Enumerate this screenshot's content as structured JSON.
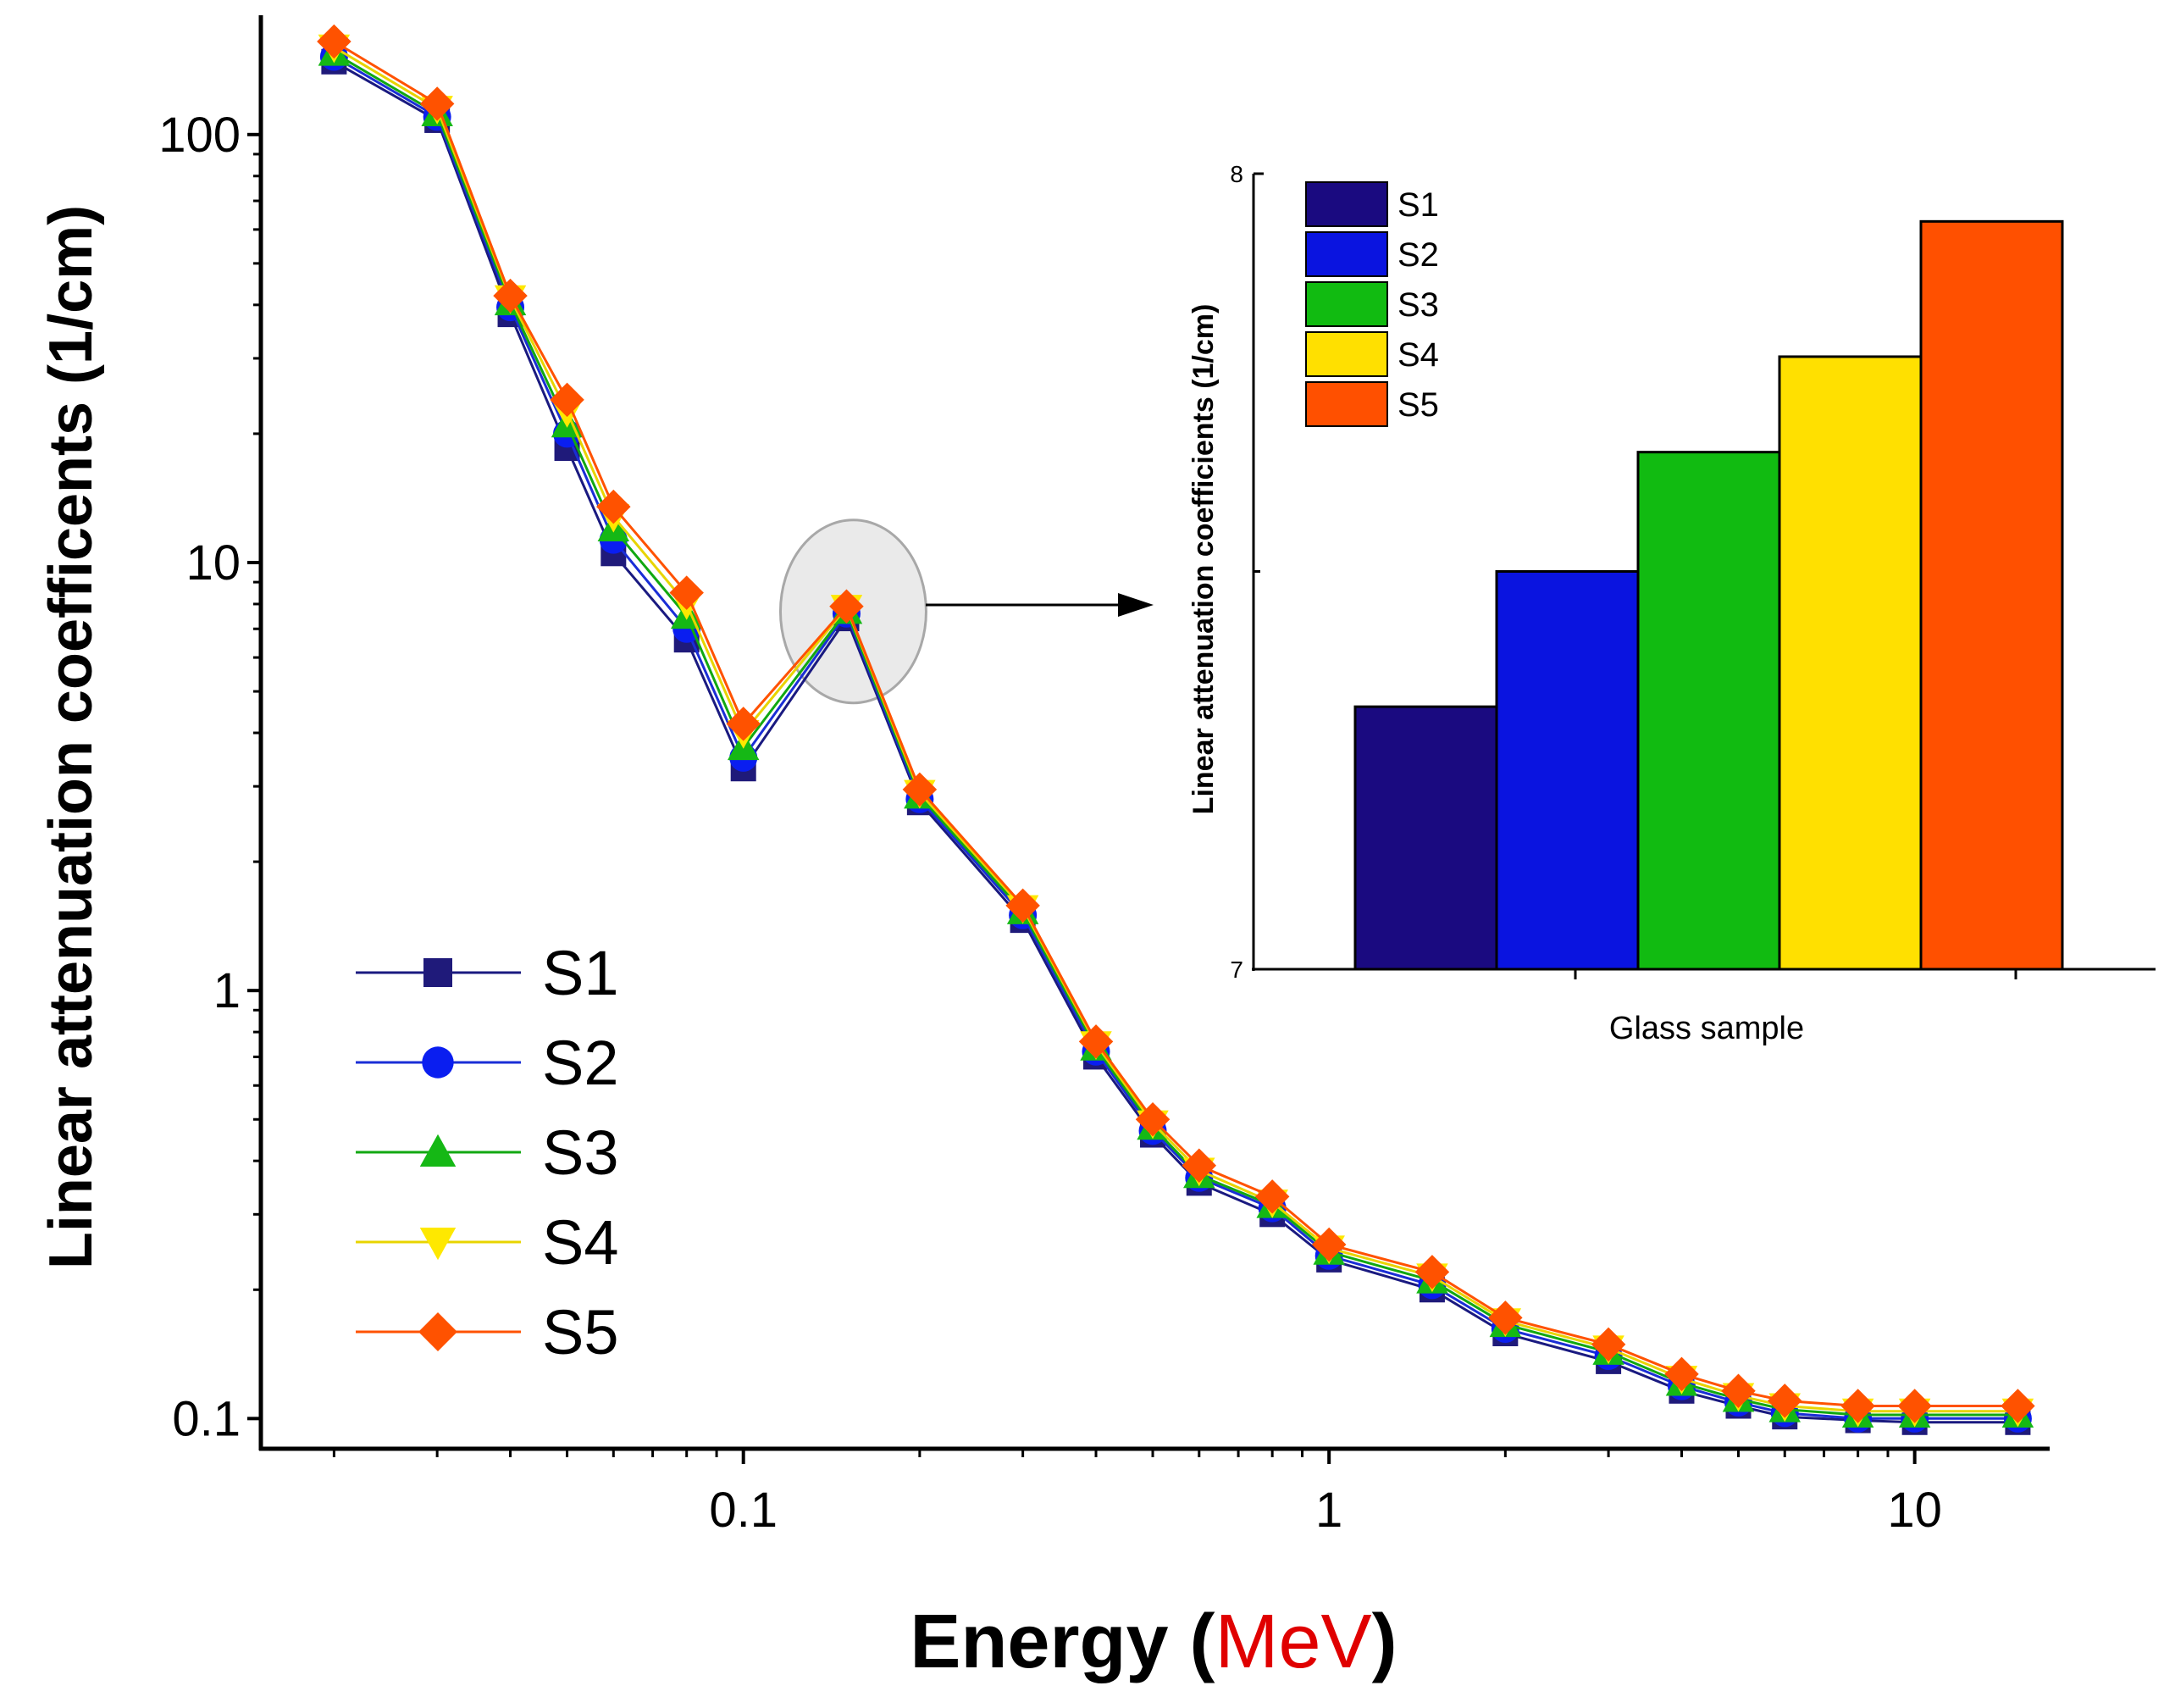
{
  "chart_data": [
    {
      "type": "line",
      "xscale": "log",
      "yscale": "log",
      "xlabel": "Energy",
      "xlabel_prefix": "Energy (",
      "xlabel_unit": "MeV",
      "xlabel_suffix": ")",
      "ylabel": "Linear attenuation coefficents (1/cm)",
      "xlim": [
        0.015,
        17
      ],
      "ylim": [
        0.085,
        190
      ],
      "x_ticks": [
        0.1,
        1,
        10
      ],
      "x_tick_labels": [
        "0.1",
        "1",
        "10"
      ],
      "y_ticks": [
        0.1,
        1,
        10,
        100
      ],
      "y_tick_labels": [
        "0.1",
        "1",
        "10",
        "100"
      ],
      "x": [
        0.02,
        0.03,
        0.04,
        0.05,
        0.06,
        0.08,
        0.1,
        0.15,
        0.2,
        0.3,
        0.4,
        0.5,
        0.6,
        0.8,
        1,
        1.5,
        2,
        3,
        4,
        5,
        6,
        8,
        10,
        15
      ],
      "series": [
        {
          "name": "S1",
          "marker": "square",
          "color": "#1a1a80",
          "markerColor": "#1f1a7a",
          "values": [
            148,
            108,
            38,
            18.5,
            10.5,
            6.6,
            3.3,
            7.4,
            2.75,
            1.46,
            0.7,
            0.46,
            0.355,
            0.3,
            0.235,
            0.2,
            0.158,
            0.136,
            0.116,
            0.107,
            0.101,
            0.099,
            0.098,
            0.098
          ]
        },
        {
          "name": "S2",
          "marker": "circle",
          "color": "#1a2ed6",
          "markerColor": "#0a1ef0",
          "values": [
            152,
            110,
            39.5,
            20,
            11.3,
            7.0,
            3.5,
            7.6,
            2.8,
            1.5,
            0.72,
            0.47,
            0.365,
            0.31,
            0.24,
            0.205,
            0.162,
            0.14,
            0.119,
            0.109,
            0.103,
            0.1,
            0.1,
            0.1
          ]
        },
        {
          "name": "S3",
          "marker": "triangle-up",
          "color": "#11a811",
          "markerColor": "#15b815",
          "values": [
            155,
            112,
            40.5,
            21,
            12.0,
            7.5,
            3.7,
            7.7,
            2.85,
            1.53,
            0.735,
            0.48,
            0.37,
            0.315,
            0.245,
            0.21,
            0.166,
            0.143,
            0.121,
            0.111,
            0.105,
            0.102,
            0.102,
            0.102
          ]
        },
        {
          "name": "S4",
          "marker": "triangle-down",
          "color": "#e8d400",
          "markerColor": "#fee800",
          "values": [
            160,
            115,
            41.5,
            22.5,
            12.8,
            8.0,
            4.0,
            7.85,
            2.9,
            1.56,
            0.75,
            0.49,
            0.38,
            0.32,
            0.25,
            0.215,
            0.169,
            0.146,
            0.124,
            0.113,
            0.107,
            0.104,
            0.104,
            0.104
          ]
        },
        {
          "name": "S5",
          "marker": "diamond",
          "color": "#ff5200",
          "markerColor": "#ff5200",
          "values": [
            165,
            118,
            42,
            24,
            13.5,
            8.5,
            4.2,
            7.9,
            2.95,
            1.58,
            0.76,
            0.5,
            0.39,
            0.33,
            0.255,
            0.22,
            0.172,
            0.149,
            0.127,
            0.116,
            0.11,
            0.107,
            0.107,
            0.107
          ]
        }
      ]
    },
    {
      "type": "bar",
      "title": "",
      "xlabel": "Glass sample",
      "ylabel": "Linear attenuation coefficients (1/cm)",
      "ylim": [
        7,
        8
      ],
      "y_tick_labels": [
        "7",
        "8"
      ],
      "categories": [
        "S1",
        "S2",
        "S3",
        "S4",
        "S5"
      ],
      "values": [
        7.33,
        7.5,
        7.65,
        7.77,
        7.94
      ],
      "colors": [
        "#1a0a80",
        "#0a14e0",
        "#11bb11",
        "#ffe000",
        "#ff5000"
      ]
    }
  ],
  "annotations": {
    "highlight_target": {
      "x": 0.15,
      "y": 7.9
    }
  }
}
